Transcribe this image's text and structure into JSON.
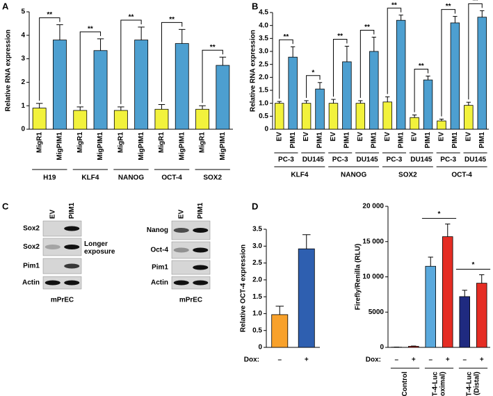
{
  "chart_data": [
    {
      "type": "bar",
      "panel": "A",
      "y_label": "Relative RNA expression",
      "categories": [
        "MigR1",
        "MigPIM1",
        "MigR1",
        "MigPIM1",
        "MigR1",
        "MigPIM1",
        "MigR1",
        "MigPIM1",
        "MigR1",
        "MigPIM1"
      ],
      "values": [
        0.9,
        3.8,
        0.8,
        3.35,
        0.8,
        3.8,
        0.85,
        3.65,
        0.85,
        2.72
      ],
      "errors": [
        0.2,
        0.65,
        0.15,
        0.5,
        0.15,
        0.55,
        0.2,
        0.6,
        0.15,
        0.35
      ],
      "colors": [
        "#f2f23c",
        "#4d9fd0"
      ],
      "ylim": [
        0,
        5
      ],
      "yticks": [
        0,
        1,
        2,
        3,
        4,
        5
      ],
      "groups": [
        {
          "label": "H19",
          "significance": "**"
        },
        {
          "label": "KLF4",
          "significance": "**"
        },
        {
          "label": "NANOG",
          "significance": "**"
        },
        {
          "label": "OCT-4",
          "significance": "**"
        },
        {
          "label": "SOX2",
          "significance": "**"
        }
      ],
      "bracket": "drop"
    },
    {
      "type": "bar",
      "panel": "B",
      "y_label": "Relative RNA expression",
      "categories": [
        "EV",
        "PIM1",
        "EV",
        "PIM1",
        "EV",
        "PIM1",
        "EV",
        "PIM1",
        "EV",
        "PIM1",
        "EV",
        "PIM1",
        "EV",
        "PIM1",
        "EV",
        "PIM1"
      ],
      "values": [
        1.0,
        2.78,
        1.0,
        1.55,
        1.0,
        2.6,
        1.0,
        3.0,
        1.05,
        4.2,
        0.45,
        1.9,
        0.32,
        4.1,
        0.92,
        4.32
      ],
      "errors": [
        0.07,
        0.4,
        0.1,
        0.25,
        0.15,
        0.6,
        0.1,
        0.55,
        0.2,
        0.2,
        0.1,
        0.15,
        0.07,
        0.25,
        0.12,
        0.25
      ],
      "colors": [
        "#f2f23c",
        "#4d9fd0"
      ],
      "ylim": [
        0,
        4.5
      ],
      "yticks": [
        0,
        0.5,
        {
          "value": 1,
          "label": "1.0"
        },
        1.5,
        {
          "value": 2,
          "label": "2.0"
        },
        2.5,
        {
          "value": 3,
          "label": "3.0"
        },
        3.5,
        {
          "value": 4,
          "label": "4.0"
        },
        4.5
      ],
      "subgroups": [
        {
          "label": "PC-3",
          "significance": "**"
        },
        {
          "label": "DU145",
          "significance": "*"
        },
        {
          "label": "PC-3",
          "significance": "**"
        },
        {
          "label": "DU145",
          "significance": "**"
        },
        {
          "label": "PC-3",
          "significance": "**"
        },
        {
          "label": "DU145",
          "significance": "**"
        },
        {
          "label": "PC-3",
          "significance": "**"
        },
        {
          "label": "DU145",
          "significance": "**"
        }
      ],
      "groups": [
        {
          "label": "KLF4"
        },
        {
          "label": "NANOG"
        },
        {
          "label": "SOX2"
        },
        {
          "label": "OCT-4"
        }
      ],
      "bracket": "drop"
    },
    {
      "type": "bar",
      "panel": "D",
      "y_label": "Relative OCT-4 expression",
      "x_prefix": "Dox:",
      "categories": [
        "–",
        "+"
      ],
      "values": [
        0.97,
        2.92
      ],
      "errors": [
        0.25,
        0.42
      ],
      "colors": [
        "#f8a12b",
        "#2e5fb0"
      ],
      "ylim": [
        0,
        3.5
      ],
      "yticks": [
        0,
        0.5,
        {
          "value": 1,
          "label": "1.0"
        },
        1.5,
        {
          "value": 2,
          "label": "2.0"
        },
        2.5,
        {
          "value": 3,
          "label": "3.0"
        },
        3.5
      ]
    },
    {
      "type": "bar",
      "y_label": "Firefly/Renilla (RLU)",
      "x_prefix": "Dox:",
      "categories": [
        "–",
        "+",
        "–",
        "+",
        "–",
        "+"
      ],
      "values": [
        30,
        150,
        11500,
        15700,
        7200,
        9100
      ],
      "errors": [
        10,
        40,
        1300,
        1800,
        900,
        1200
      ],
      "colors": [
        "#5aa9dd",
        "#e52d24",
        "#5aa9dd",
        "#e52d24",
        "#1f2a80",
        "#e52d24"
      ],
      "ylim": [
        0,
        20000
      ],
      "yticks": [
        0,
        5000,
        {
          "value": 10000,
          "label": "10 000"
        },
        {
          "value": 15000,
          "label": "15 000"
        },
        {
          "value": 20000,
          "label": "20 000"
        }
      ],
      "groups": [
        {
          "label": [
            "Control"
          ]
        },
        {
          "label": [
            "p-OCT-4-Luc",
            "(Proximal)"
          ],
          "significance": "*"
        },
        {
          "label": [
            "p-OCT-4-Luc",
            "(Distal)"
          ],
          "significance": "*"
        }
      ],
      "bracket": "flat"
    }
  ],
  "western_blot": {
    "panel": "C",
    "blots": [
      {
        "lanes": [
          "EV",
          "PIM1"
        ],
        "rows": [
          "Sox2",
          "Sox2",
          "Pim1",
          "Actin"
        ],
        "note": "Longer exposure",
        "caption": "mPrEC"
      },
      {
        "lanes": [
          "EV",
          "PIM1"
        ],
        "rows": [
          "Nanog",
          "Oct-4",
          "Pim1",
          "Actin"
        ],
        "caption": "mPrEC"
      }
    ]
  }
}
